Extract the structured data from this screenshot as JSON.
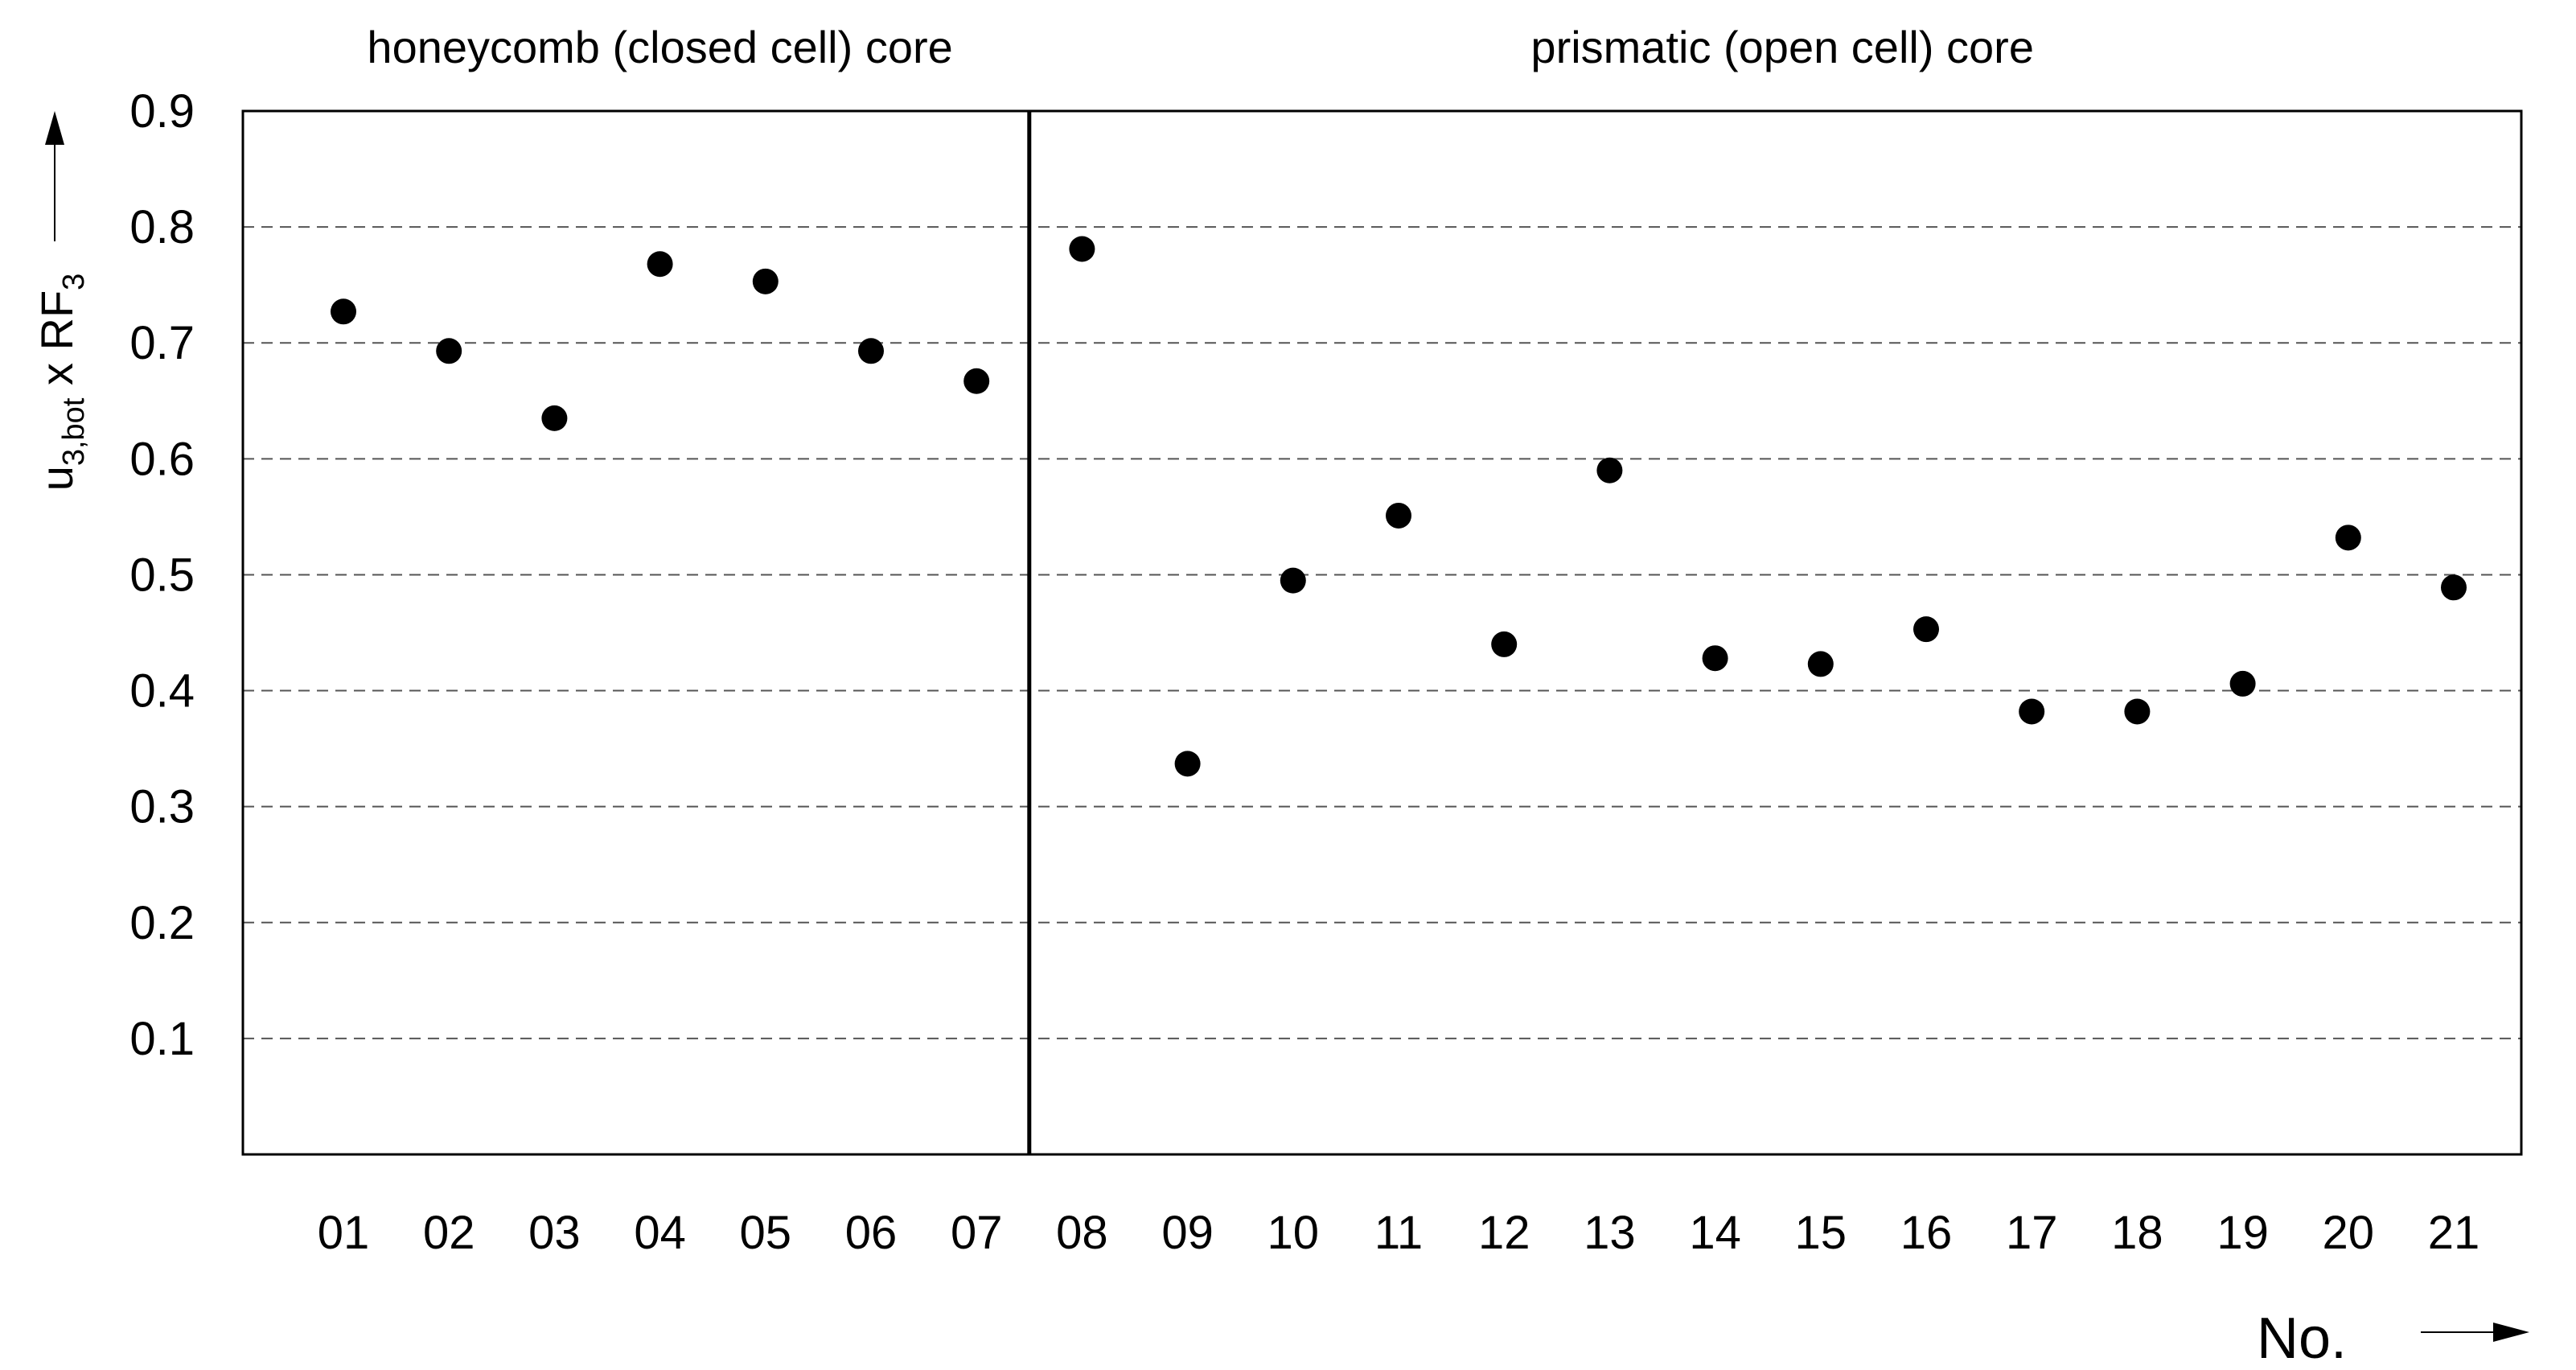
{
  "chart_data": {
    "type": "scatter",
    "categories": [
      "01",
      "02",
      "03",
      "04",
      "05",
      "06",
      "07",
      "08",
      "09",
      "10",
      "11",
      "12",
      "13",
      "14",
      "15",
      "16",
      "17",
      "18",
      "19",
      "20",
      "21"
    ],
    "values": [
      0.727,
      0.693,
      0.635,
      0.768,
      0.753,
      0.693,
      0.667,
      0.781,
      0.337,
      0.495,
      0.551,
      0.44,
      0.59,
      0.428,
      0.423,
      0.453,
      0.382,
      0.382,
      0.406,
      0.532,
      0.489
    ],
    "ylim": [
      0,
      0.9
    ],
    "yticks": [
      "0.1",
      "0.2",
      "0.3",
      "0.4",
      "0.5",
      "0.6",
      "0.7",
      "0.8",
      "0.9"
    ],
    "ylabel": {
      "base": "u",
      "base_sub": "3,bot",
      "times": " x ",
      "factor": "RF",
      "factor_sub": "3"
    },
    "xlabel": "No.",
    "grid": "horizontal-dashed",
    "groups": [
      {
        "label": "honeycomb (closed cell) core",
        "from": "01",
        "to": "07"
      },
      {
        "label": "prismatic (open cell) core",
        "from": "08",
        "to": "21"
      }
    ],
    "divider_between": [
      "07",
      "08"
    ]
  }
}
